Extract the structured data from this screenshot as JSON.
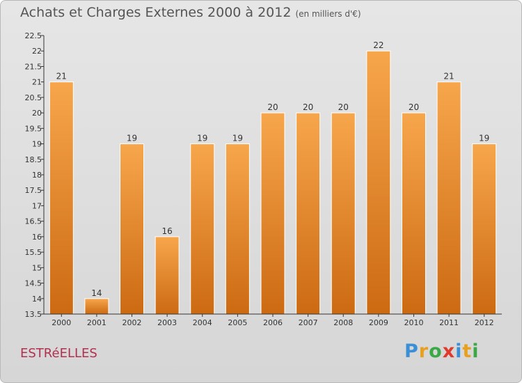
{
  "header": {
    "title": "Achats et Charges Externes 2000 à 2012",
    "unit": "(en milliers d'€)"
  },
  "footer": {
    "commune": "ESTRéELLES",
    "logo": {
      "letters": [
        "P",
        "r",
        "o",
        "x",
        "i",
        "t",
        "i"
      ],
      "colors": [
        "#3a8fd6",
        "#e8a020",
        "#3aa845",
        "#e03a2c",
        "#3a8fd6",
        "#e8a020",
        "#3aa845"
      ]
    }
  },
  "chart_data": {
    "type": "bar",
    "title": "Achats et Charges Externes 2000 à 2012",
    "xlabel": "",
    "ylabel": "",
    "categories": [
      "2000",
      "2001",
      "2002",
      "2003",
      "2004",
      "2005",
      "2006",
      "2007",
      "2008",
      "2009",
      "2010",
      "2011",
      "2012"
    ],
    "values": [
      21,
      14,
      19,
      16,
      19,
      19,
      20,
      20,
      20,
      22,
      20,
      21,
      19
    ],
    "labels": [
      "21",
      "14",
      "19",
      "16",
      "19",
      "19",
      "20",
      "20",
      "20",
      "22",
      "20",
      "21",
      "19"
    ],
    "ylim": [
      13.5,
      22.5
    ],
    "yticks": [
      "13.5",
      "14",
      "14.5",
      "15",
      "15.5",
      "16",
      "16.5",
      "17",
      "17.5",
      "18",
      "18.5",
      "19",
      "19.5",
      "20",
      "20.5",
      "21",
      "21.5",
      "22",
      "22.5"
    ],
    "grid": false,
    "colors": {
      "bar_top": "#f7a64c",
      "bar_bottom": "#cc6a12"
    }
  }
}
